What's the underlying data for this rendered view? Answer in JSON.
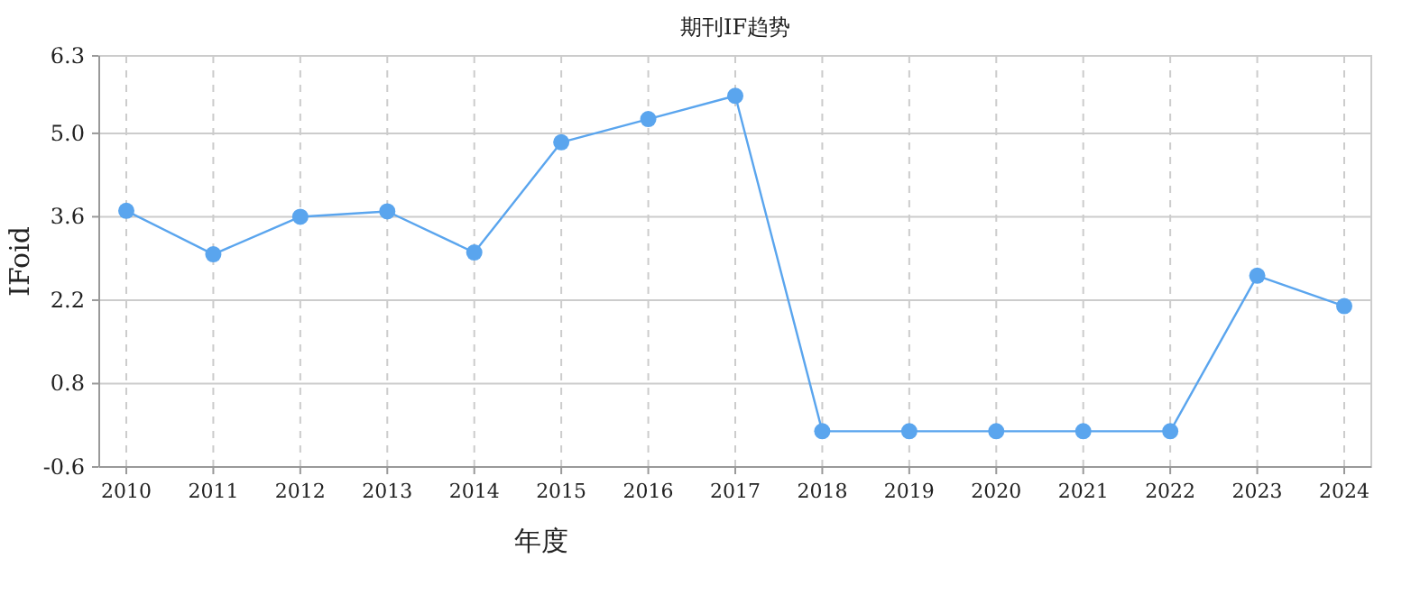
{
  "chart_data": {
    "type": "line",
    "title": "期刊IF趋势",
    "xlabel": "年度",
    "ylabel": "IFoid",
    "categories": [
      "2010",
      "2011",
      "2012",
      "2013",
      "2014",
      "2015",
      "2016",
      "2017",
      "2018",
      "2019",
      "2020",
      "2021",
      "2022",
      "2023",
      "2024"
    ],
    "series": [
      {
        "color": "#5aa5ee",
        "values": [
          3.7,
          2.97,
          3.6,
          3.69,
          3.0,
          4.85,
          5.24,
          5.63,
          0,
          0,
          0,
          0,
          0,
          2.61,
          2.1
        ]
      }
    ],
    "ylim": [
      -0.6,
      6.3
    ],
    "yticks": [
      6.3,
      {
        "value": 5,
        "label": "5.0"
      },
      3.6,
      2.2,
      0.8,
      -0.6
    ],
    "grid": true,
    "marker": "circle",
    "line_style": "solid"
  }
}
